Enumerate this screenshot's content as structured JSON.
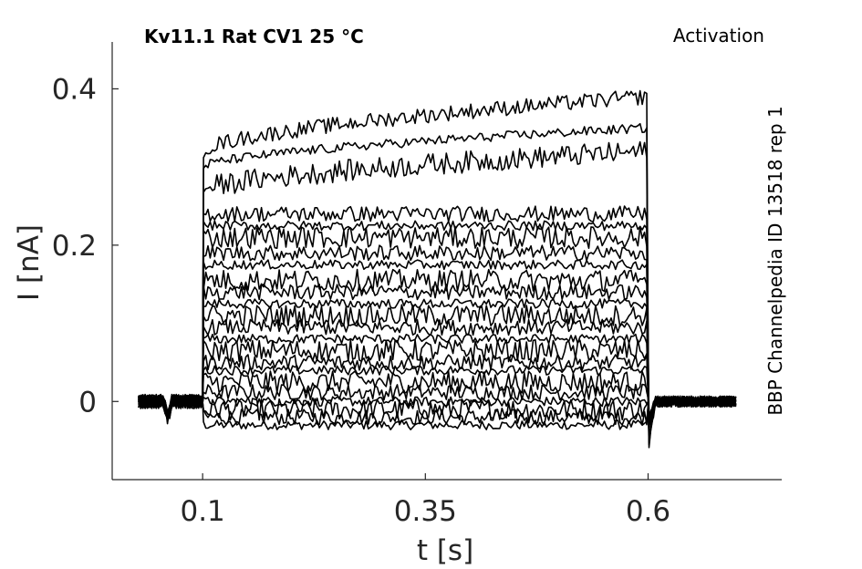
{
  "chart_data": {
    "type": "line",
    "title": "Kv11.1  Rat  CV1  25 °C",
    "subtitle": "Activation",
    "side_label": "BBP Channelpedia ID 13518 rep 1",
    "xlabel": "t [s]",
    "ylabel": "I [nA]",
    "xlim": [
      -0.0015,
      0.75
    ],
    "ylim": [
      -0.1,
      0.46
    ],
    "xticks": [
      0.1,
      0.35,
      0.6
    ],
    "xtick_labels": [
      "0.1",
      "0.35",
      "0.6"
    ],
    "yticks": [
      0,
      0.2,
      0.4
    ],
    "ytick_labels": [
      "0",
      "0.2",
      "0.4"
    ],
    "grid": false,
    "line_color": "#000000",
    "protocol": {
      "baseline_start": 0.028,
      "step_start": 0.1,
      "step_end": 0.6,
      "trace_end": 0.7
    },
    "series": [
      {
        "step_level": -0.03
      },
      {
        "step_level": -0.02
      },
      {
        "step_level": -0.01
      },
      {
        "step_level": 0.0
      },
      {
        "step_level": 0.012
      },
      {
        "step_level": 0.025
      },
      {
        "step_level": 0.04
      },
      {
        "step_level": 0.05
      },
      {
        "step_level": 0.065
      },
      {
        "step_level": 0.08
      },
      {
        "step_level": 0.095
      },
      {
        "step_level": 0.11
      },
      {
        "step_level": 0.125
      },
      {
        "step_level": 0.14
      },
      {
        "step_level": 0.155
      },
      {
        "step_level": 0.175
      },
      {
        "step_level": 0.19
      },
      {
        "step_level": 0.21
      },
      {
        "step_level": 0.225
      },
      {
        "step_level": 0.24
      },
      {
        "step_level": 0.27,
        "step_end_level": 0.32
      },
      {
        "step_level": 0.3,
        "step_end_level": 0.35
      },
      {
        "step_level": 0.32,
        "step_end_level": 0.39
      }
    ]
  }
}
